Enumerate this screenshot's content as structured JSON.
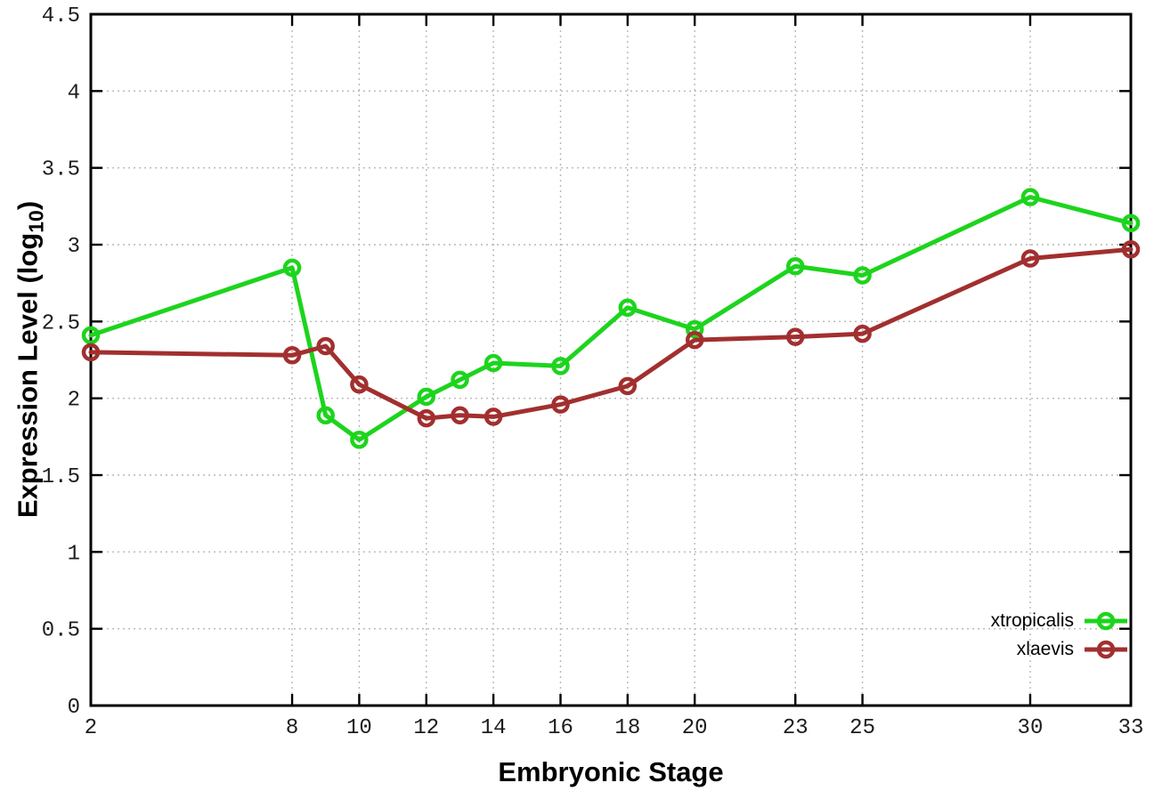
{
  "chart_data": {
    "type": "line",
    "title": "",
    "xlabel": "Embryonic Stage",
    "ylabel": "Expression Level (log10)",
    "ylabel_parts": {
      "prefix": "Expression Level (log",
      "subscript": "10",
      "suffix": ")"
    },
    "xlim": [
      2,
      33
    ],
    "ylim": [
      0,
      4.5
    ],
    "x_ticks": [
      2,
      8,
      10,
      12,
      14,
      16,
      18,
      20,
      23,
      25,
      30,
      33
    ],
    "y_ticks": [
      0,
      0.5,
      1,
      1.5,
      2,
      2.5,
      3,
      3.5,
      4,
      4.5
    ],
    "grid": true,
    "grid_color": "#b8b8b8",
    "axis_color": "#000000",
    "background": "#ffffff",
    "legend_position": "inside bottom-right",
    "x": [
      2,
      8,
      9,
      10,
      12,
      13,
      14,
      16,
      18,
      20,
      23,
      25,
      30,
      33
    ],
    "series": [
      {
        "name": "xtropicalis",
        "color": "#1dd41d",
        "marker": "open-circle",
        "values": [
          2.41,
          2.85,
          1.89,
          1.73,
          2.01,
          2.12,
          2.23,
          2.21,
          2.59,
          2.45,
          2.86,
          2.8,
          3.31,
          3.14
        ]
      },
      {
        "name": "xlaevis",
        "color": "#a22f2f",
        "marker": "open-circle",
        "values": [
          2.3,
          2.28,
          2.34,
          2.09,
          1.87,
          1.89,
          1.88,
          1.96,
          2.08,
          2.38,
          2.4,
          2.42,
          2.91,
          2.97
        ]
      }
    ]
  }
}
